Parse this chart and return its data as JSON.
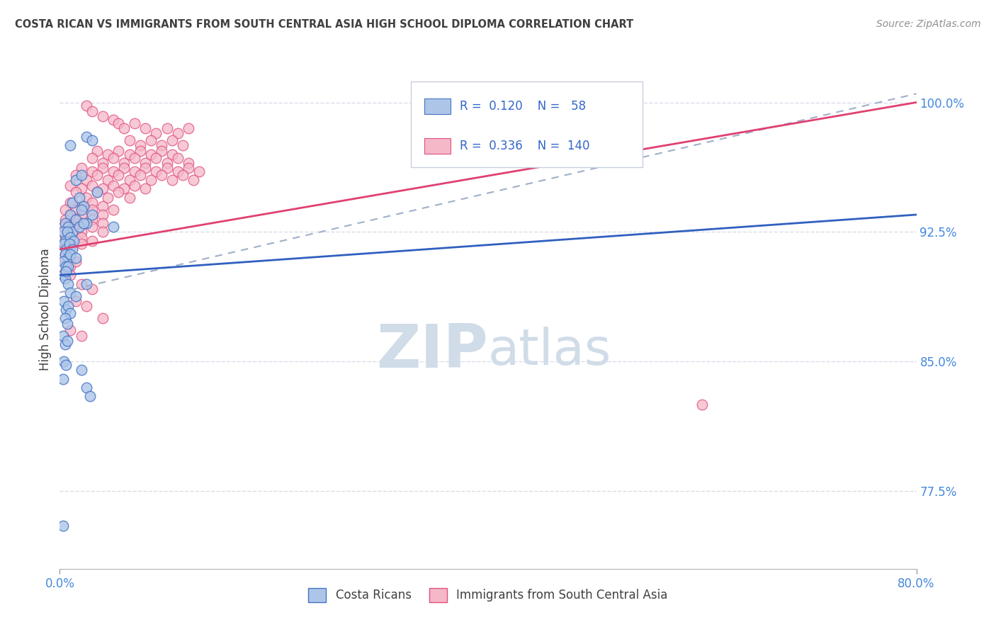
{
  "title": "COSTA RICAN VS IMMIGRANTS FROM SOUTH CENTRAL ASIA HIGH SCHOOL DIPLOMA CORRELATION CHART",
  "source": "Source: ZipAtlas.com",
  "ylabel": "High School Diploma",
  "r_blue": 0.12,
  "n_blue": 58,
  "r_pink": 0.336,
  "n_pink": 140,
  "legend_blue": "Costa Ricans",
  "legend_pink": "Immigrants from South Central Asia",
  "blue_fill": "#adc6e8",
  "pink_fill": "#f5b8c8",
  "blue_edge": "#4472c4",
  "pink_edge": "#e05080",
  "blue_line_color": "#3060c0",
  "pink_line_color": "#e04070",
  "dashed_line_color": "#a0afc8",
  "title_color": "#404040",
  "axis_label_color": "#4488dd",
  "stat_color": "#3366cc",
  "yticks": [
    77.5,
    85.0,
    92.5,
    100.0
  ],
  "xlim": [
    0,
    80
  ],
  "ylim": [
    73,
    103
  ],
  "watermark_zip": "ZIP",
  "watermark_atlas": "atlas",
  "watermark_color": "#d0dce8",
  "bg_color": "#ffffff",
  "grid_color": "#d8dde8",
  "blue_scatter": [
    [
      1.0,
      97.5
    ],
    [
      2.5,
      98.0
    ],
    [
      3.0,
      97.8
    ],
    [
      1.5,
      95.5
    ],
    [
      2.0,
      95.8
    ],
    [
      1.2,
      94.2
    ],
    [
      1.8,
      94.5
    ],
    [
      2.2,
      94.0
    ],
    [
      3.5,
      94.8
    ],
    [
      1.0,
      93.5
    ],
    [
      1.5,
      93.2
    ],
    [
      2.0,
      93.8
    ],
    [
      2.5,
      93.0
    ],
    [
      3.0,
      93.5
    ],
    [
      0.5,
      93.0
    ],
    [
      0.8,
      92.8
    ],
    [
      1.2,
      92.5
    ],
    [
      1.8,
      92.8
    ],
    [
      2.2,
      93.0
    ],
    [
      0.3,
      92.5
    ],
    [
      0.5,
      92.0
    ],
    [
      0.7,
      92.5
    ],
    [
      1.0,
      92.2
    ],
    [
      1.3,
      92.0
    ],
    [
      0.4,
      91.8
    ],
    [
      0.6,
      91.5
    ],
    [
      0.9,
      91.8
    ],
    [
      1.2,
      91.5
    ],
    [
      0.5,
      91.2
    ],
    [
      0.8,
      91.0
    ],
    [
      1.0,
      91.2
    ],
    [
      1.5,
      91.0
    ],
    [
      0.3,
      90.8
    ],
    [
      0.6,
      90.5
    ],
    [
      0.8,
      90.5
    ],
    [
      5.0,
      92.8
    ],
    [
      0.3,
      90.0
    ],
    [
      0.5,
      89.8
    ],
    [
      0.6,
      90.2
    ],
    [
      0.8,
      89.5
    ],
    [
      1.0,
      89.0
    ],
    [
      1.5,
      88.8
    ],
    [
      2.5,
      89.5
    ],
    [
      0.4,
      88.5
    ],
    [
      0.6,
      88.0
    ],
    [
      0.8,
      88.2
    ],
    [
      1.0,
      87.8
    ],
    [
      0.5,
      87.5
    ],
    [
      0.7,
      87.2
    ],
    [
      0.3,
      86.5
    ],
    [
      0.5,
      86.0
    ],
    [
      0.7,
      86.2
    ],
    [
      0.4,
      85.0
    ],
    [
      0.6,
      84.8
    ],
    [
      0.3,
      84.0
    ],
    [
      2.0,
      84.5
    ],
    [
      2.5,
      83.5
    ],
    [
      2.8,
      83.0
    ],
    [
      0.3,
      75.5
    ]
  ],
  "pink_scatter": [
    [
      2.5,
      99.8
    ],
    [
      3.0,
      99.5
    ],
    [
      4.0,
      99.2
    ],
    [
      5.0,
      99.0
    ],
    [
      5.5,
      98.8
    ],
    [
      6.0,
      98.5
    ],
    [
      7.0,
      98.8
    ],
    [
      8.0,
      98.5
    ],
    [
      9.0,
      98.2
    ],
    [
      10.0,
      98.5
    ],
    [
      11.0,
      98.2
    ],
    [
      12.0,
      98.5
    ],
    [
      6.5,
      97.8
    ],
    [
      7.5,
      97.5
    ],
    [
      8.5,
      97.8
    ],
    [
      9.5,
      97.5
    ],
    [
      10.5,
      97.8
    ],
    [
      11.5,
      97.5
    ],
    [
      3.5,
      97.2
    ],
    [
      4.5,
      97.0
    ],
    [
      5.5,
      97.2
    ],
    [
      6.5,
      97.0
    ],
    [
      7.5,
      97.2
    ],
    [
      8.5,
      97.0
    ],
    [
      9.5,
      97.2
    ],
    [
      10.5,
      97.0
    ],
    [
      3.0,
      96.8
    ],
    [
      4.0,
      96.5
    ],
    [
      5.0,
      96.8
    ],
    [
      6.0,
      96.5
    ],
    [
      7.0,
      96.8
    ],
    [
      8.0,
      96.5
    ],
    [
      9.0,
      96.8
    ],
    [
      10.0,
      96.5
    ],
    [
      11.0,
      96.8
    ],
    [
      12.0,
      96.5
    ],
    [
      2.0,
      96.2
    ],
    [
      3.0,
      96.0
    ],
    [
      4.0,
      96.2
    ],
    [
      5.0,
      96.0
    ],
    [
      6.0,
      96.2
    ],
    [
      7.0,
      96.0
    ],
    [
      8.0,
      96.2
    ],
    [
      9.0,
      96.0
    ],
    [
      10.0,
      96.2
    ],
    [
      11.0,
      96.0
    ],
    [
      12.0,
      96.2
    ],
    [
      13.0,
      96.0
    ],
    [
      1.5,
      95.8
    ],
    [
      2.5,
      95.5
    ],
    [
      3.5,
      95.8
    ],
    [
      4.5,
      95.5
    ],
    [
      5.5,
      95.8
    ],
    [
      6.5,
      95.5
    ],
    [
      7.5,
      95.8
    ],
    [
      8.5,
      95.5
    ],
    [
      9.5,
      95.8
    ],
    [
      10.5,
      95.5
    ],
    [
      11.5,
      95.8
    ],
    [
      12.5,
      95.5
    ],
    [
      1.0,
      95.2
    ],
    [
      2.0,
      95.0
    ],
    [
      3.0,
      95.2
    ],
    [
      4.0,
      95.0
    ],
    [
      5.0,
      95.2
    ],
    [
      6.0,
      95.0
    ],
    [
      7.0,
      95.2
    ],
    [
      8.0,
      95.0
    ],
    [
      1.5,
      94.8
    ],
    [
      2.5,
      94.5
    ],
    [
      3.5,
      94.8
    ],
    [
      4.5,
      94.5
    ],
    [
      5.5,
      94.8
    ],
    [
      6.5,
      94.5
    ],
    [
      1.0,
      94.2
    ],
    [
      2.0,
      94.0
    ],
    [
      3.0,
      94.2
    ],
    [
      4.0,
      94.0
    ],
    [
      0.5,
      93.8
    ],
    [
      1.0,
      93.5
    ],
    [
      1.5,
      93.8
    ],
    [
      2.0,
      93.5
    ],
    [
      3.0,
      93.8
    ],
    [
      4.0,
      93.5
    ],
    [
      5.0,
      93.8
    ],
    [
      0.5,
      93.2
    ],
    [
      1.0,
      93.0
    ],
    [
      1.5,
      93.2
    ],
    [
      2.0,
      93.0
    ],
    [
      3.0,
      93.2
    ],
    [
      4.0,
      93.0
    ],
    [
      0.3,
      92.8
    ],
    [
      0.8,
      92.5
    ],
    [
      1.3,
      92.8
    ],
    [
      2.0,
      92.5
    ],
    [
      3.0,
      92.8
    ],
    [
      4.0,
      92.5
    ],
    [
      0.5,
      92.2
    ],
    [
      1.0,
      92.0
    ],
    [
      2.0,
      92.2
    ],
    [
      3.0,
      92.0
    ],
    [
      0.5,
      91.8
    ],
    [
      1.0,
      91.5
    ],
    [
      2.0,
      91.8
    ],
    [
      0.5,
      91.2
    ],
    [
      1.0,
      91.0
    ],
    [
      0.5,
      90.8
    ],
    [
      1.0,
      90.5
    ],
    [
      1.5,
      90.8
    ],
    [
      0.5,
      90.2
    ],
    [
      1.0,
      90.0
    ],
    [
      2.0,
      89.5
    ],
    [
      3.0,
      89.2
    ],
    [
      1.5,
      88.5
    ],
    [
      2.5,
      88.2
    ],
    [
      4.0,
      87.5
    ],
    [
      1.0,
      86.8
    ],
    [
      2.0,
      86.5
    ],
    [
      60.0,
      82.5
    ]
  ],
  "blue_line": [
    [
      0,
      90.0
    ],
    [
      80,
      93.5
    ]
  ],
  "pink_line": [
    [
      0,
      91.5
    ],
    [
      80,
      100.0
    ]
  ],
  "dash_line": [
    [
      0,
      89.0
    ],
    [
      80,
      100.5
    ]
  ]
}
